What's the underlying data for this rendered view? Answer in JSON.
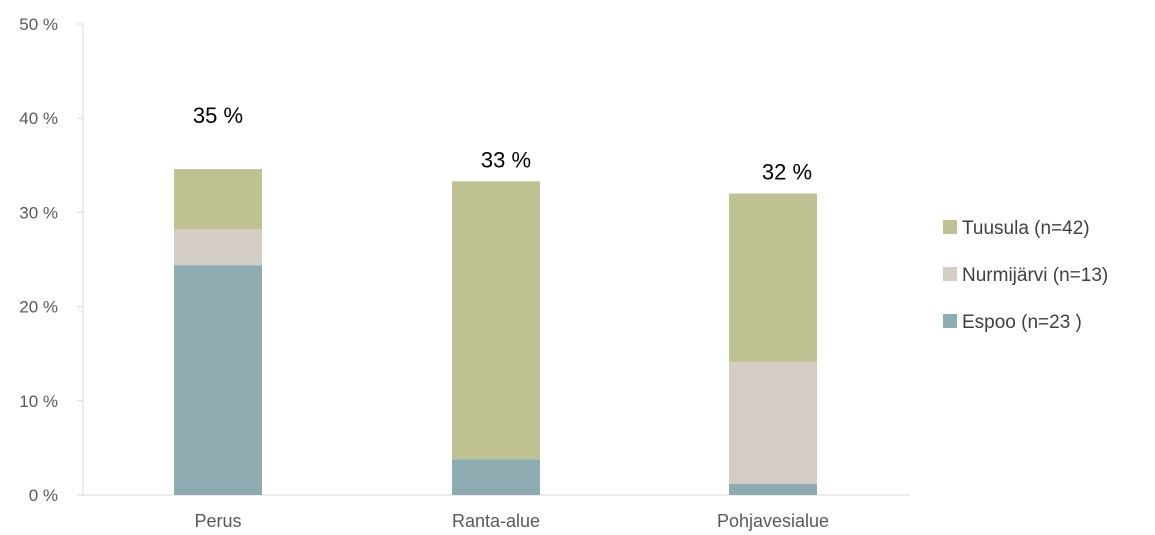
{
  "chart_data": {
    "type": "stacked-bar",
    "categories": [
      "Perus",
      "Ranta-alue",
      "Pohjavesialue"
    ],
    "series": [
      {
        "name": "Espoo (n=23 )",
        "color": "#8eabb1",
        "values": [
          24.4,
          3.8,
          1.2
        ]
      },
      {
        "name": "Nurmijärvi (n=13)",
        "color": "#d3cdc6",
        "values": [
          3.8,
          0,
          12.9
        ]
      },
      {
        "name": "Tuusula (n=42)",
        "color": "#c0c192",
        "values": [
          6.4,
          29.5,
          17.9
        ]
      }
    ],
    "totals_labels": [
      "35 %",
      "33 %",
      "32 %"
    ],
    "y_ticks": [
      {
        "value": 0,
        "label": "0 %"
      },
      {
        "value": 10,
        "label": "10 %"
      },
      {
        "value": 20,
        "label": "20 %"
      },
      {
        "value": 30,
        "label": "30 %"
      },
      {
        "value": 40,
        "label": "40 %"
      },
      {
        "value": 50,
        "label": "50 %"
      }
    ],
    "ylim": [
      0,
      50
    ],
    "legend_position": "right",
    "grid": false
  }
}
